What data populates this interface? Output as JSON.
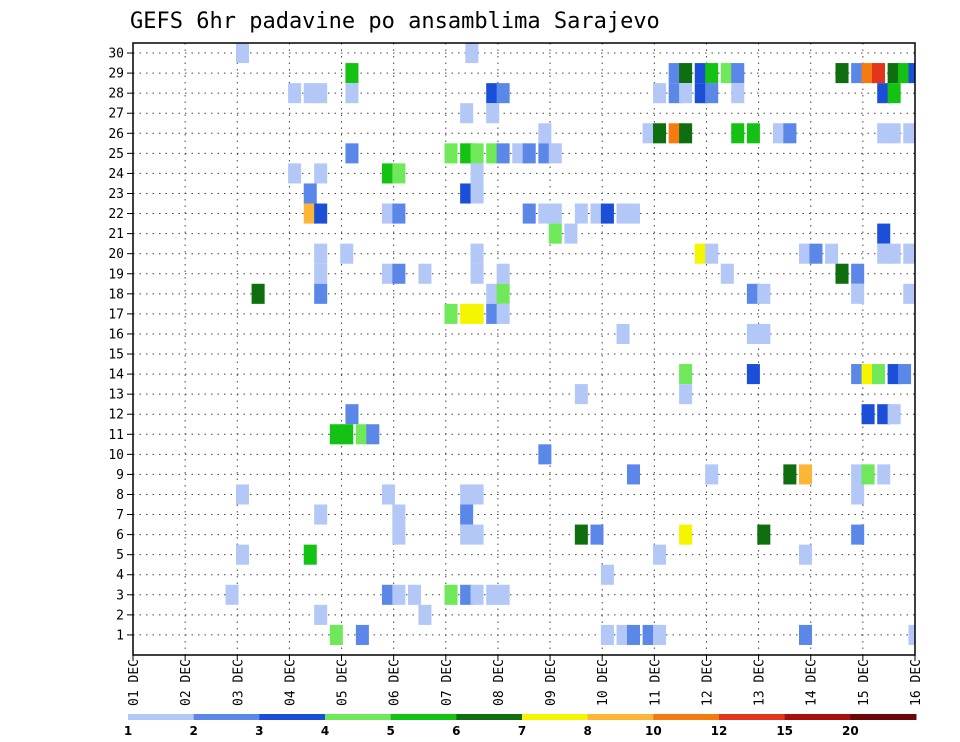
{
  "chart_data": {
    "type": "heatmap",
    "title": "GEFS 6hr padavine po ansamblima Sarajevo",
    "y_labels": [
      "1",
      "2",
      "3",
      "4",
      "5",
      "6",
      "7",
      "8",
      "9",
      "10",
      "11",
      "12",
      "13",
      "14",
      "15",
      "16",
      "17",
      "18",
      "19",
      "20",
      "21",
      "22",
      "23",
      "24",
      "25",
      "26",
      "27",
      "28",
      "29",
      "30"
    ],
    "x_labels": [
      "01 DEC",
      "02 DEC",
      "03 DEC",
      "04 DEC",
      "05 DEC",
      "06 DEC",
      "07 DEC",
      "08 DEC",
      "09 DEC",
      "10 DEC",
      "11 DEC",
      "12 DEC",
      "13 DEC",
      "14 DEC",
      "15 DEC",
      "16 DEC"
    ],
    "steps_per_day": 4,
    "legend_labels": [
      "1",
      "2",
      "3",
      "4",
      "5",
      "6",
      "7",
      "8",
      "10",
      "12",
      "15",
      "20"
    ],
    "legend_colors": [
      "#b3c8f7",
      "#5b88e8",
      "#1b4fd8",
      "#6fe85a",
      "#14c214",
      "#0f6e10",
      "#f5f500",
      "#fbb637",
      "#f57a10",
      "#e3341c",
      "#a80f0f",
      "#6b0707"
    ],
    "grid": "dotted",
    "cells": [
      [
        30,
        3.1,
        1
      ],
      [
        30,
        7.5,
        1
      ],
      [
        29,
        5.2,
        5
      ],
      [
        29,
        11.4,
        2
      ],
      [
        29,
        11.6,
        6
      ],
      [
        29,
        11.9,
        3
      ],
      [
        29,
        12.1,
        5
      ],
      [
        29,
        12.4,
        4
      ],
      [
        29,
        12.6,
        2
      ],
      [
        29,
        14.6,
        6
      ],
      [
        29,
        14.9,
        2
      ],
      [
        29,
        15.1,
        9
      ],
      [
        29,
        15.3,
        10
      ],
      [
        29,
        15.6,
        6
      ],
      [
        29,
        15.8,
        5
      ],
      [
        29,
        16,
        3
      ],
      [
        28,
        4.1,
        1
      ],
      [
        28,
        4.4,
        1
      ],
      [
        28,
        4.6,
        1
      ],
      [
        28,
        5.2,
        1
      ],
      [
        28,
        7.9,
        3
      ],
      [
        28,
        8.1,
        2
      ],
      [
        28,
        11.1,
        1
      ],
      [
        28,
        11.4,
        2
      ],
      [
        28,
        11.6,
        1
      ],
      [
        28,
        11.9,
        3
      ],
      [
        28,
        12.1,
        2
      ],
      [
        28,
        12.6,
        1
      ],
      [
        28,
        15.4,
        3
      ],
      [
        28,
        15.6,
        5
      ],
      [
        27,
        7.4,
        1
      ],
      [
        27,
        7.9,
        1
      ],
      [
        26,
        8.9,
        1
      ],
      [
        26,
        10.9,
        1
      ],
      [
        26,
        11.1,
        6
      ],
      [
        26,
        11.4,
        9
      ],
      [
        26,
        11.6,
        6
      ],
      [
        26,
        12.6,
        5
      ],
      [
        26,
        12.9,
        5
      ],
      [
        26,
        13.4,
        1
      ],
      [
        26,
        13.6,
        2
      ],
      [
        26,
        15.4,
        1
      ],
      [
        26,
        15.6,
        1
      ],
      [
        26,
        15.9,
        1
      ],
      [
        25,
        5.2,
        2
      ],
      [
        25,
        7.1,
        4
      ],
      [
        25,
        7.4,
        5
      ],
      [
        25,
        7.6,
        4
      ],
      [
        25,
        7.9,
        4
      ],
      [
        25,
        8.1,
        2
      ],
      [
        25,
        8.4,
        1
      ],
      [
        25,
        8.6,
        2
      ],
      [
        25,
        8.9,
        2
      ],
      [
        25,
        9.1,
        1
      ],
      [
        24,
        4.1,
        1
      ],
      [
        24,
        4.6,
        1
      ],
      [
        24,
        5.9,
        5
      ],
      [
        24,
        6.1,
        4
      ],
      [
        24,
        7.6,
        1
      ],
      [
        23,
        4.4,
        2
      ],
      [
        23,
        7.4,
        3
      ],
      [
        23,
        7.6,
        1
      ],
      [
        22,
        4.4,
        8
      ],
      [
        22,
        4.6,
        3
      ],
      [
        22,
        5.9,
        1
      ],
      [
        22,
        6.1,
        2
      ],
      [
        22,
        8.6,
        2
      ],
      [
        22,
        8.9,
        1
      ],
      [
        22,
        9.1,
        1
      ],
      [
        22,
        9.6,
        1
      ],
      [
        22,
        9.9,
        1
      ],
      [
        22,
        10.1,
        3
      ],
      [
        22,
        10.4,
        1
      ],
      [
        22,
        10.6,
        1
      ],
      [
        21,
        9.1,
        4
      ],
      [
        21,
        9.4,
        1
      ],
      [
        21,
        15.4,
        3
      ],
      [
        20,
        4.6,
        1
      ],
      [
        20,
        5.1,
        1
      ],
      [
        20,
        7.6,
        1
      ],
      [
        20,
        11.9,
        7
      ],
      [
        20,
        12.1,
        1
      ],
      [
        20,
        13.9,
        1
      ],
      [
        20,
        14.1,
        2
      ],
      [
        20,
        14.4,
        1
      ],
      [
        20,
        15.4,
        1
      ],
      [
        20,
        15.6,
        1
      ],
      [
        20,
        15.9,
        1
      ],
      [
        19,
        4.6,
        1
      ],
      [
        19,
        5.9,
        1
      ],
      [
        19,
        6.1,
        2
      ],
      [
        19,
        6.6,
        1
      ],
      [
        19,
        7.6,
        1
      ],
      [
        19,
        8.1,
        1
      ],
      [
        19,
        12.4,
        1
      ],
      [
        19,
        14.6,
        6
      ],
      [
        19,
        14.9,
        2
      ],
      [
        18,
        3.4,
        6
      ],
      [
        18,
        4.6,
        2
      ],
      [
        18,
        7.9,
        1
      ],
      [
        18,
        8.1,
        4
      ],
      [
        18,
        12.9,
        2
      ],
      [
        18,
        13.1,
        1
      ],
      [
        18,
        14.9,
        1
      ],
      [
        18,
        15.9,
        1
      ],
      [
        17,
        7.1,
        4
      ],
      [
        17,
        7.4,
        7
      ],
      [
        17,
        7.6,
        7
      ],
      [
        17,
        7.9,
        2
      ],
      [
        17,
        8.1,
        1
      ],
      [
        16,
        10.4,
        1
      ],
      [
        16,
        12.9,
        1
      ],
      [
        16,
        13.1,
        1
      ],
      [
        14,
        11.6,
        4
      ],
      [
        14,
        12.9,
        3
      ],
      [
        14,
        14.9,
        2
      ],
      [
        14,
        15.1,
        7
      ],
      [
        14,
        15.3,
        4
      ],
      [
        14,
        15.6,
        3
      ],
      [
        14,
        15.8,
        2
      ],
      [
        13,
        9.6,
        1
      ],
      [
        13,
        11.6,
        1
      ],
      [
        12,
        5.2,
        2
      ],
      [
        12,
        15.1,
        3
      ],
      [
        12,
        15.4,
        3
      ],
      [
        12,
        15.6,
        1
      ],
      [
        11,
        4.9,
        5
      ],
      [
        11,
        5.1,
        5
      ],
      [
        11,
        5.4,
        4
      ],
      [
        11,
        5.6,
        2
      ],
      [
        10,
        8.9,
        2
      ],
      [
        9,
        10.6,
        2
      ],
      [
        9,
        12.1,
        1
      ],
      [
        9,
        13.6,
        6
      ],
      [
        9,
        13.9,
        8
      ],
      [
        9,
        14.9,
        1
      ],
      [
        9,
        15.1,
        4
      ],
      [
        9,
        15.4,
        1
      ],
      [
        8,
        3.1,
        1
      ],
      [
        8,
        5.9,
        1
      ],
      [
        8,
        7.4,
        1
      ],
      [
        8,
        7.6,
        1
      ],
      [
        8,
        14.9,
        1
      ],
      [
        7,
        4.6,
        1
      ],
      [
        7,
        6.1,
        1
      ],
      [
        7,
        7.4,
        2
      ],
      [
        6,
        6.1,
        1
      ],
      [
        6,
        7.4,
        1
      ],
      [
        6,
        7.6,
        1
      ],
      [
        6,
        9.6,
        6
      ],
      [
        6,
        9.9,
        2
      ],
      [
        6,
        11.6,
        7
      ],
      [
        6,
        13.1,
        6
      ],
      [
        6,
        14.9,
        2
      ],
      [
        5,
        3.1,
        1
      ],
      [
        5,
        4.4,
        5
      ],
      [
        5,
        11.1,
        1
      ],
      [
        5,
        13.9,
        1
      ],
      [
        4,
        10.1,
        1
      ],
      [
        3,
        2.9,
        1
      ],
      [
        3,
        5.9,
        2
      ],
      [
        3,
        6.1,
        1
      ],
      [
        3,
        6.4,
        1
      ],
      [
        3,
        7.1,
        4
      ],
      [
        3,
        7.4,
        2
      ],
      [
        3,
        7.6,
        1
      ],
      [
        3,
        7.9,
        1
      ],
      [
        3,
        8.1,
        1
      ],
      [
        2,
        4.6,
        1
      ],
      [
        2,
        6.6,
        1
      ],
      [
        1,
        4.9,
        4
      ],
      [
        1,
        5.4,
        2
      ],
      [
        1,
        10.1,
        1
      ],
      [
        1,
        10.4,
        1
      ],
      [
        1,
        10.6,
        2
      ],
      [
        1,
        10.9,
        2
      ],
      [
        1,
        11.1,
        1
      ],
      [
        1,
        13.9,
        2
      ],
      [
        1,
        16,
        1
      ]
    ]
  }
}
